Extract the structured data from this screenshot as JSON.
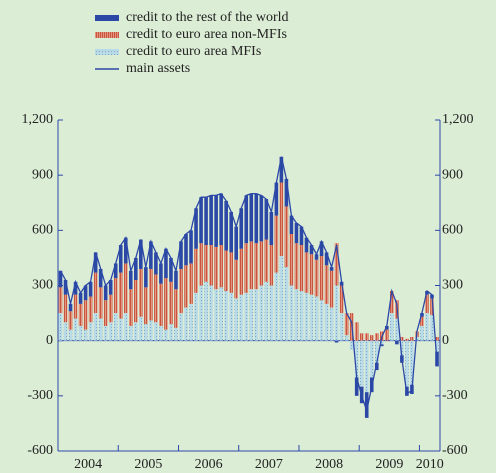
{
  "chart_data": {
    "type": "stacked-bar-line",
    "years": [
      "2004",
      "2005",
      "2006",
      "2007",
      "2008",
      "2009",
      "2010"
    ],
    "ylim": [
      -600,
      1200
    ],
    "yticks": [
      -600,
      -300,
      0,
      300,
      600,
      900,
      {
        "value": 1200,
        "label": "1,200"
      }
    ],
    "series": [
      {
        "name": "credit to euro area MFIs",
        "color": "#b9dbe8",
        "kind": "bar",
        "values": [
          150,
          100,
          60,
          120,
          80,
          60,
          100,
          150,
          120,
          80,
          100,
          150,
          120,
          150,
          80,
          100,
          130,
          90,
          110,
          100,
          80,
          60,
          90,
          70,
          150,
          180,
          200,
          260,
          300,
          320,
          300,
          280,
          290,
          270,
          260,
          230,
          250,
          260,
          280,
          280,
          300,
          320,
          300,
          370,
          460,
          400,
          300,
          280,
          270,
          260,
          250,
          240,
          220,
          200,
          180,
          300,
          150,
          30,
          -50,
          -200,
          -250,
          -280,
          -200,
          -120,
          -20,
          0,
          150,
          120,
          -80,
          -250,
          -240,
          20,
          80,
          150,
          140,
          -60
        ]
      },
      {
        "name": "credit to euro area non-MFIs",
        "color": "#e39480",
        "kind": "bar",
        "values": [
          140,
          150,
          100,
          130,
          120,
          160,
          140,
          220,
          170,
          140,
          150,
          190,
          250,
          270,
          200,
          230,
          260,
          200,
          280,
          260,
          230,
          280,
          230,
          210,
          240,
          230,
          220,
          240,
          230,
          200,
          220,
          230,
          230,
          220,
          220,
          210,
          250,
          270,
          260,
          250,
          240,
          230,
          220,
          310,
          400,
          330,
          280,
          250,
          250,
          220,
          220,
          200,
          240,
          210,
          200,
          230,
          150,
          120,
          150,
          100,
          40,
          40,
          30,
          40,
          50,
          60,
          120,
          100,
          20,
          10,
          20,
          30,
          50,
          100,
          90,
          20
        ]
      },
      {
        "name": "credit to the rest of the world",
        "color": "#2b48a6",
        "kind": "bar",
        "values": [
          90,
          80,
          40,
          70,
          60,
          80,
          80,
          110,
          100,
          80,
          80,
          80,
          150,
          140,
          100,
          120,
          160,
          110,
          150,
          120,
          110,
          160,
          130,
          100,
          150,
          170,
          180,
          220,
          250,
          260,
          270,
          280,
          280,
          270,
          220,
          180,
          220,
          260,
          260,
          270,
          250,
          220,
          180,
          180,
          140,
          150,
          100,
          110,
          100,
          80,
          50,
          30,
          80,
          70,
          20,
          -10,
          20,
          0,
          0,
          -100,
          -90,
          -140,
          -80,
          -40,
          -10,
          20,
          0,
          -20,
          -40,
          -50,
          -50,
          0,
          20,
          20,
          20,
          -80
        ]
      },
      {
        "name": "main assets",
        "color": "#2b48a6",
        "kind": "line",
        "values": [
          380,
          330,
          200,
          320,
          260,
          300,
          320,
          480,
          390,
          300,
          330,
          420,
          520,
          560,
          380,
          450,
          550,
          400,
          540,
          480,
          420,
          500,
          450,
          380,
          540,
          580,
          600,
          720,
          780,
          780,
          790,
          790,
          800,
          760,
          700,
          620,
          720,
          790,
          800,
          800,
          790,
          770,
          700,
          860,
          1000,
          880,
          680,
          640,
          620,
          560,
          520,
          470,
          540,
          480,
          400,
          520,
          320,
          150,
          100,
          -200,
          -300,
          -380,
          -250,
          -120,
          20,
          80,
          270,
          200,
          -100,
          -290,
          -270,
          50,
          150,
          270,
          250,
          -120
        ]
      }
    ]
  }
}
